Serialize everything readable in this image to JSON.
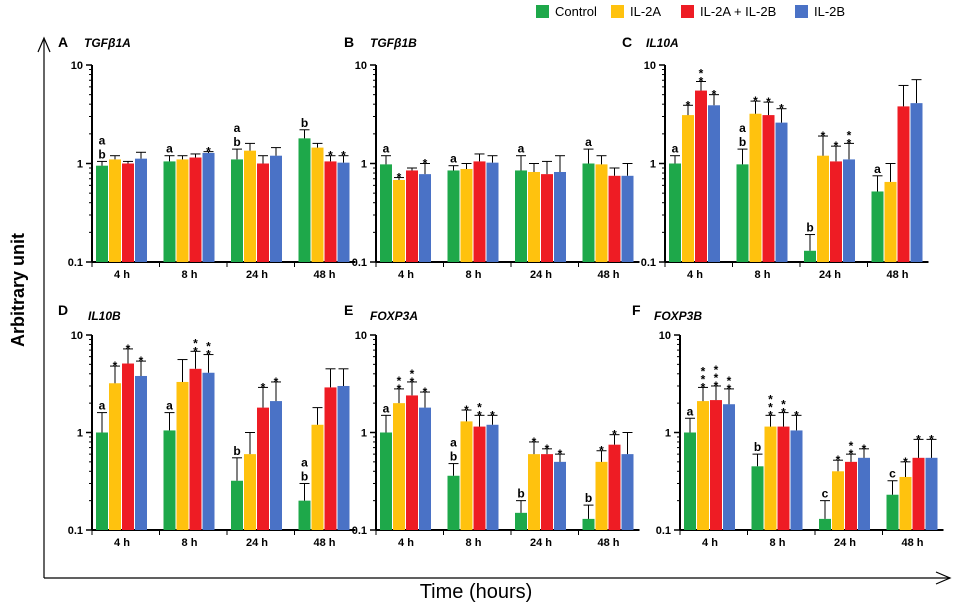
{
  "figure": {
    "y_axis_title": "Arbitrary unit",
    "x_axis_title": "Time (hours)"
  },
  "legend": [
    {
      "name": "Control",
      "color": "#1ea84a"
    },
    {
      "name": "IL-2A",
      "color": "#ffc20e"
    },
    {
      "name": "IL-2A + IL-2B",
      "color": "#ee1c24"
    },
    {
      "name": "IL-2B",
      "color": "#4a72c6"
    }
  ],
  "chart_data": [
    {
      "type": "bar",
      "panel": "A",
      "title": "TGFβ1A",
      "yscale": "log",
      "ylim": [
        0.1,
        10
      ],
      "yticks": [
        "0.1",
        "1",
        "10"
      ],
      "categories": [
        "4 h",
        "8 h",
        "24 h",
        "48 h"
      ],
      "series": [
        {
          "name": "Control",
          "values": [
            0.95,
            1.05,
            1.1,
            1.8
          ],
          "errors": [
            1.05,
            1.2,
            1.4,
            2.2
          ]
        },
        {
          "name": "IL-2A",
          "values": [
            1.1,
            1.1,
            1.35,
            1.45
          ],
          "errors": [
            1.2,
            1.2,
            1.6,
            1.6
          ]
        },
        {
          "name": "IL-2A + IL-2B",
          "values": [
            1.0,
            1.15,
            1.0,
            1.05
          ],
          "errors": [
            1.05,
            1.25,
            1.2,
            1.2
          ]
        },
        {
          "name": "IL-2B",
          "values": [
            1.12,
            1.28,
            1.2,
            1.02
          ],
          "errors": [
            1.3,
            1.32,
            1.45,
            1.2
          ]
        }
      ],
      "annotations": [
        {
          "cat": 0,
          "series": 0,
          "text": [
            "a",
            "b"
          ]
        },
        {
          "cat": 1,
          "series": 0,
          "text": [
            "a"
          ]
        },
        {
          "cat": 1,
          "series": 3,
          "text": [
            "*"
          ]
        },
        {
          "cat": 2,
          "series": 0,
          "text": [
            "a",
            "b"
          ]
        },
        {
          "cat": 3,
          "series": 0,
          "text": [
            "b"
          ]
        },
        {
          "cat": 3,
          "series": 2,
          "text": [
            "*"
          ]
        },
        {
          "cat": 3,
          "series": 3,
          "text": [
            "*"
          ]
        }
      ]
    },
    {
      "type": "bar",
      "panel": "B",
      "title": "TGFβ1B",
      "yscale": "log",
      "ylim": [
        0.1,
        10
      ],
      "yticks": [
        "0.1",
        "1",
        "10"
      ],
      "categories": [
        "4 h",
        "8 h",
        "24 h",
        "48 h"
      ],
      "series": [
        {
          "name": "Control",
          "values": [
            0.98,
            0.85,
            0.85,
            1.0
          ],
          "errors": [
            1.2,
            0.95,
            1.2,
            1.4
          ]
        },
        {
          "name": "IL-2A",
          "values": [
            0.68,
            0.88,
            0.82,
            0.98
          ],
          "errors": [
            0.72,
            1.0,
            1.0,
            1.2
          ]
        },
        {
          "name": "IL-2A + IL-2B",
          "values": [
            0.85,
            1.05,
            0.78,
            0.75
          ],
          "errors": [
            0.9,
            1.25,
            1.05,
            0.9
          ]
        },
        {
          "name": "IL-2B",
          "values": [
            0.78,
            1.02,
            0.82,
            0.75
          ],
          "errors": [
            1.0,
            1.2,
            1.2,
            1.0
          ]
        }
      ],
      "annotations": [
        {
          "cat": 0,
          "series": 0,
          "text": [
            "a"
          ]
        },
        {
          "cat": 0,
          "series": 1,
          "text": [
            "*"
          ]
        },
        {
          "cat": 0,
          "series": 3,
          "text": [
            "*"
          ]
        },
        {
          "cat": 1,
          "series": 0,
          "text": [
            "a"
          ]
        },
        {
          "cat": 2,
          "series": 0,
          "text": [
            "a"
          ]
        },
        {
          "cat": 3,
          "series": 0,
          "text": [
            "a"
          ]
        }
      ]
    },
    {
      "type": "bar",
      "panel": "C",
      "title": "IL10A",
      "yscale": "log",
      "ylim": [
        0.1,
        10
      ],
      "yticks": [
        "0.1",
        "1",
        "10"
      ],
      "categories": [
        "4 h",
        "8 h",
        "24 h",
        "48 h"
      ],
      "series": [
        {
          "name": "Control",
          "values": [
            1.0,
            0.98,
            0.13,
            0.52
          ],
          "errors": [
            1.2,
            1.4,
            0.19,
            0.75
          ]
        },
        {
          "name": "IL-2A",
          "values": [
            3.1,
            3.2,
            1.2,
            0.65
          ],
          "errors": [
            3.9,
            4.3,
            1.9,
            1.0
          ]
        },
        {
          "name": "IL-2A + IL-2B",
          "values": [
            5.5,
            3.1,
            1.05,
            3.8
          ],
          "errors": [
            6.8,
            4.2,
            1.5,
            6.2
          ]
        },
        {
          "name": "IL-2B",
          "values": [
            3.9,
            2.6,
            1.1,
            4.1
          ],
          "errors": [
            5.0,
            3.6,
            1.6,
            7.1
          ]
        }
      ],
      "annotations": [
        {
          "cat": 0,
          "series": 0,
          "text": [
            "a"
          ]
        },
        {
          "cat": 0,
          "series": 1,
          "text": [
            "*"
          ]
        },
        {
          "cat": 0,
          "series": 2,
          "text": [
            "*",
            "*"
          ]
        },
        {
          "cat": 0,
          "series": 3,
          "text": [
            "*"
          ]
        },
        {
          "cat": 1,
          "series": 0,
          "text": [
            "a",
            "b"
          ]
        },
        {
          "cat": 1,
          "series": 1,
          "text": [
            "*"
          ]
        },
        {
          "cat": 1,
          "series": 2,
          "text": [
            "*"
          ]
        },
        {
          "cat": 1,
          "series": 3,
          "text": [
            "*"
          ]
        },
        {
          "cat": 2,
          "series": 0,
          "text": [
            "b"
          ]
        },
        {
          "cat": 2,
          "series": 1,
          "text": [
            "*"
          ]
        },
        {
          "cat": 2,
          "series": 2,
          "text": [
            "*"
          ]
        },
        {
          "cat": 2,
          "series": 3,
          "text": [
            "*",
            "*"
          ]
        },
        {
          "cat": 3,
          "series": 0,
          "text": [
            "a"
          ]
        }
      ]
    },
    {
      "type": "bar",
      "panel": "D",
      "title": "IL10B",
      "yscale": "log",
      "ylim": [
        0.1,
        10
      ],
      "yticks": [
        "0.1",
        "1",
        "10"
      ],
      "categories": [
        "4 h",
        "8 h",
        "24 h",
        "48 h"
      ],
      "series": [
        {
          "name": "Control",
          "values": [
            1.0,
            1.05,
            0.32,
            0.2
          ],
          "errors": [
            1.6,
            1.6,
            0.55,
            0.3
          ]
        },
        {
          "name": "IL-2A",
          "values": [
            3.2,
            3.3,
            0.6,
            1.2
          ],
          "errors": [
            4.8,
            5.6,
            1.0,
            1.8
          ]
        },
        {
          "name": "IL-2A + IL-2B",
          "values": [
            5.1,
            4.5,
            1.8,
            2.9
          ],
          "errors": [
            7.2,
            6.8,
            2.9,
            4.5
          ]
        },
        {
          "name": "IL-2B",
          "values": [
            3.8,
            4.1,
            2.1,
            3.0
          ],
          "errors": [
            5.4,
            6.3,
            3.3,
            4.5
          ]
        }
      ],
      "annotations": [
        {
          "cat": 0,
          "series": 0,
          "text": [
            "a"
          ]
        },
        {
          "cat": 0,
          "series": 1,
          "text": [
            "*"
          ]
        },
        {
          "cat": 0,
          "series": 2,
          "text": [
            "*"
          ]
        },
        {
          "cat": 0,
          "series": 3,
          "text": [
            "*"
          ]
        },
        {
          "cat": 1,
          "series": 0,
          "text": [
            "a"
          ]
        },
        {
          "cat": 1,
          "series": 2,
          "text": [
            "*",
            "*"
          ]
        },
        {
          "cat": 1,
          "series": 3,
          "text": [
            "*",
            "*"
          ]
        },
        {
          "cat": 2,
          "series": 0,
          "text": [
            "b"
          ]
        },
        {
          "cat": 2,
          "series": 2,
          "text": [
            "*"
          ]
        },
        {
          "cat": 2,
          "series": 3,
          "text": [
            "*"
          ]
        },
        {
          "cat": 3,
          "series": 0,
          "text": [
            "a",
            "b"
          ]
        }
      ]
    },
    {
      "type": "bar",
      "panel": "E",
      "title": "FOXP3A",
      "yscale": "log",
      "ylim": [
        0.1,
        10
      ],
      "yticks": [
        "0.1",
        "1",
        "10"
      ],
      "categories": [
        "4 h",
        "8 h",
        "24 h",
        "48 h"
      ],
      "series": [
        {
          "name": "Control",
          "values": [
            1.0,
            0.36,
            0.15,
            0.13
          ],
          "errors": [
            1.5,
            0.48,
            0.2,
            0.18
          ]
        },
        {
          "name": "IL-2A",
          "values": [
            2.0,
            1.3,
            0.6,
            0.5
          ],
          "errors": [
            2.8,
            1.7,
            0.8,
            0.65
          ]
        },
        {
          "name": "IL-2A + IL-2B",
          "values": [
            2.4,
            1.15,
            0.6,
            0.75
          ],
          "errors": [
            3.3,
            1.5,
            0.68,
            0.95
          ]
        },
        {
          "name": "IL-2B",
          "values": [
            1.8,
            1.2,
            0.5,
            0.6
          ],
          "errors": [
            2.6,
            1.5,
            0.6,
            1.0
          ]
        }
      ],
      "annotations": [
        {
          "cat": 0,
          "series": 0,
          "text": [
            "a"
          ]
        },
        {
          "cat": 0,
          "series": 1,
          "text": [
            "*",
            "*"
          ]
        },
        {
          "cat": 0,
          "series": 2,
          "text": [
            "*",
            "*"
          ]
        },
        {
          "cat": 0,
          "series": 3,
          "text": [
            "*"
          ]
        },
        {
          "cat": 1,
          "series": 0,
          "text": [
            "a",
            "b"
          ]
        },
        {
          "cat": 1,
          "series": 1,
          "text": [
            "*"
          ]
        },
        {
          "cat": 1,
          "series": 2,
          "text": [
            "*",
            "*"
          ]
        },
        {
          "cat": 1,
          "series": 3,
          "text": [
            "*"
          ]
        },
        {
          "cat": 2,
          "series": 0,
          "text": [
            "b"
          ]
        },
        {
          "cat": 2,
          "series": 1,
          "text": [
            "*"
          ]
        },
        {
          "cat": 2,
          "series": 2,
          "text": [
            "*"
          ]
        },
        {
          "cat": 2,
          "series": 3,
          "text": [
            "*"
          ]
        },
        {
          "cat": 3,
          "series": 0,
          "text": [
            "b"
          ]
        },
        {
          "cat": 3,
          "series": 1,
          "text": [
            "*"
          ]
        },
        {
          "cat": 3,
          "series": 2,
          "text": [
            "*"
          ]
        }
      ]
    },
    {
      "type": "bar",
      "panel": "F",
      "title": "FOXP3B",
      "yscale": "log",
      "ylim": [
        0.1,
        10
      ],
      "yticks": [
        "0.1",
        "1",
        "10"
      ],
      "categories": [
        "4 h",
        "8 h",
        "24 h",
        "48 h"
      ],
      "series": [
        {
          "name": "Control",
          "values": [
            1.0,
            0.45,
            0.13,
            0.23
          ],
          "errors": [
            1.4,
            0.6,
            0.2,
            0.32
          ]
        },
        {
          "name": "IL-2A",
          "values": [
            2.1,
            1.15,
            0.4,
            0.35
          ],
          "errors": [
            2.9,
            1.5,
            0.52,
            0.5
          ]
        },
        {
          "name": "IL-2A + IL-2B",
          "values": [
            2.15,
            1.15,
            0.5,
            0.55
          ],
          "errors": [
            3.0,
            1.6,
            0.6,
            0.85
          ]
        },
        {
          "name": "IL-2B",
          "values": [
            1.95,
            1.05,
            0.55,
            0.55
          ],
          "errors": [
            2.8,
            1.5,
            0.68,
            0.85
          ]
        }
      ],
      "annotations": [
        {
          "cat": 0,
          "series": 0,
          "text": [
            "a"
          ]
        },
        {
          "cat": 0,
          "series": 1,
          "text": [
            "*",
            "*",
            "*"
          ]
        },
        {
          "cat": 0,
          "series": 2,
          "text": [
            "*",
            "*",
            "*"
          ]
        },
        {
          "cat": 0,
          "series": 3,
          "text": [
            "*",
            "*"
          ]
        },
        {
          "cat": 1,
          "series": 0,
          "text": [
            "b"
          ]
        },
        {
          "cat": 1,
          "series": 1,
          "text": [
            "*",
            "*",
            "*"
          ]
        },
        {
          "cat": 1,
          "series": 2,
          "text": [
            "*",
            "*"
          ]
        },
        {
          "cat": 1,
          "series": 3,
          "text": [
            "*"
          ]
        },
        {
          "cat": 2,
          "series": 0,
          "text": [
            "c"
          ]
        },
        {
          "cat": 2,
          "series": 1,
          "text": [
            "*"
          ]
        },
        {
          "cat": 2,
          "series": 2,
          "text": [
            "*",
            "*"
          ]
        },
        {
          "cat": 2,
          "series": 3,
          "text": [
            "*"
          ]
        },
        {
          "cat": 3,
          "series": 0,
          "text": [
            "c"
          ]
        },
        {
          "cat": 3,
          "series": 1,
          "text": [
            "*"
          ]
        },
        {
          "cat": 3,
          "series": 2,
          "text": [
            "*"
          ]
        },
        {
          "cat": 3,
          "series": 3,
          "text": [
            "*"
          ]
        }
      ]
    }
  ]
}
